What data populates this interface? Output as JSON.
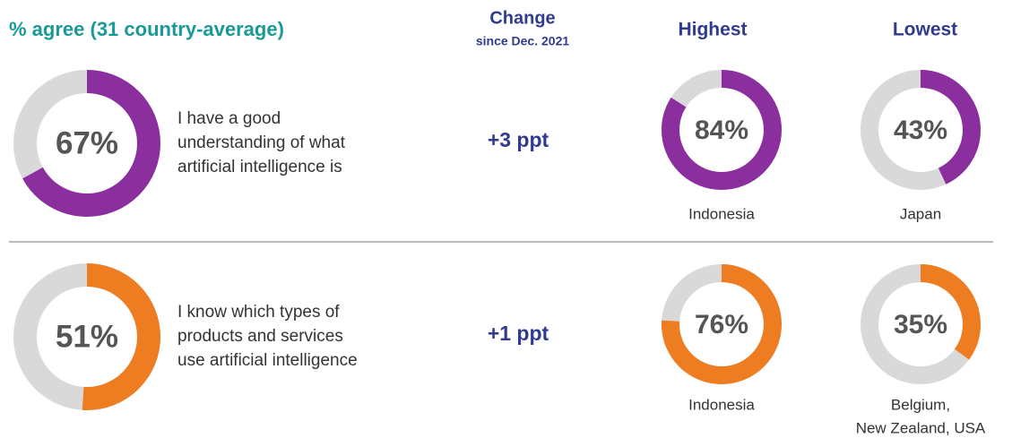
{
  "header": {
    "title": "% agree (31 country-average)",
    "change": "Change",
    "change_sub": "since Dec. 2021",
    "highest": "Highest",
    "lowest": "Lowest"
  },
  "colors": {
    "track": "#d9d9d9"
  },
  "rows": [
    {
      "color": "#8b2f9f",
      "statement": [
        "I have a good",
        "understanding of what",
        "artificial intelligence is"
      ],
      "average": {
        "value": 67,
        "label": "67%"
      },
      "change": "+3 ppt",
      "highest": {
        "value": 84,
        "label": "84%",
        "country": [
          "Indonesia"
        ]
      },
      "lowest": {
        "value": 43,
        "label": "43%",
        "country": [
          "Japan"
        ]
      }
    },
    {
      "color": "#ee7d22",
      "statement": [
        "I know which types of",
        "products and services",
        "use artificial intelligence"
      ],
      "average": {
        "value": 51,
        "label": "51%"
      },
      "change": "+1 ppt",
      "highest": {
        "value": 76,
        "label": "76%",
        "country": [
          "Indonesia"
        ]
      },
      "lowest": {
        "value": 35,
        "label": "35%",
        "country": [
          "Belgium,",
          "New Zealand, USA"
        ]
      }
    }
  ]
}
